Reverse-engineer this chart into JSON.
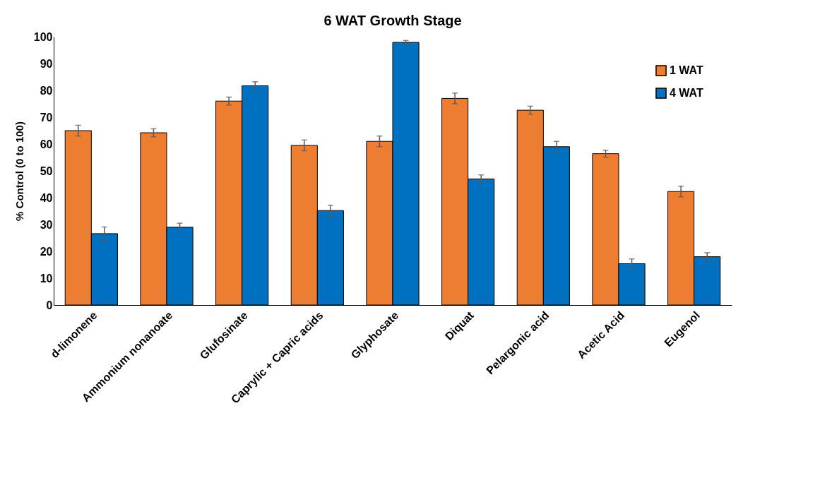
{
  "chart_data": {
    "type": "bar",
    "title": "6 WAT Growth Stage",
    "ylabel": "% Control (0 to 100)",
    "categories": [
      "d-limonene",
      "Ammonium nonanoate",
      "Glufosinate",
      "Caprylic + Capric acids",
      "Glyphosate",
      "Diquat",
      "Pelargonic acid",
      "Acetic Acid",
      "Eugenol"
    ],
    "series": [
      {
        "name": "1 WAT",
        "color": "#ed7d31",
        "values": [
          65,
          64.2,
          76,
          59.5,
          61,
          77,
          72.6,
          56.4,
          42.3
        ],
        "errors": [
          2,
          1.5,
          1.5,
          2,
          2,
          2,
          1.5,
          1.3,
          2
        ]
      },
      {
        "name": "4 WAT",
        "color": "#0070c0",
        "values": [
          26.6,
          29,
          81.7,
          35.2,
          97.9,
          47,
          59,
          15.4,
          18
        ],
        "errors": [
          2.5,
          1.5,
          1.5,
          2,
          0.7,
          1.5,
          2,
          1.8,
          1.5
        ]
      }
    ],
    "ylim": [
      0,
      100
    ],
    "yticks": [
      0,
      10,
      20,
      30,
      40,
      50,
      60,
      70,
      80,
      90,
      100
    ],
    "grid": false,
    "legend": "top right"
  }
}
